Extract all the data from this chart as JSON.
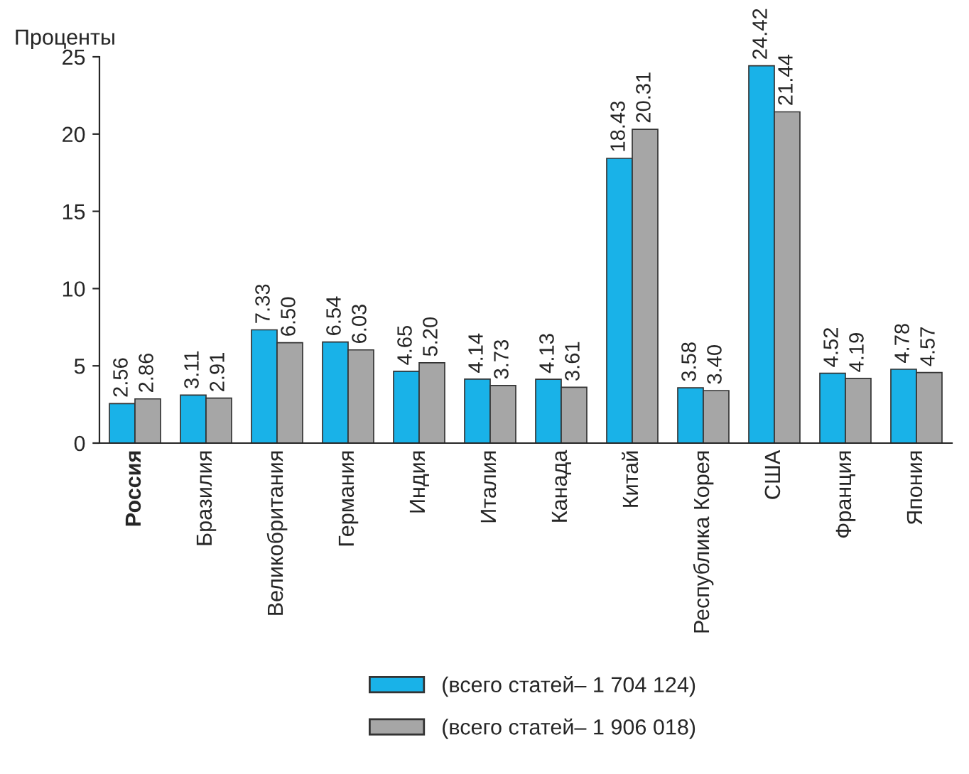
{
  "chart_data": {
    "type": "bar",
    "ylabel": "Проценты",
    "categories": [
      "Россия",
      "Бразилия",
      "Великобритания",
      "Германия",
      "Индия",
      "Италия",
      "Канада",
      "Китай",
      "Республика Корея",
      "США",
      "Франция",
      "Япония"
    ],
    "series": [
      {
        "name": "(всего статей– 1 704 124)",
        "color": "#19b2e8",
        "values": [
          2.56,
          3.11,
          7.33,
          6.54,
          4.65,
          4.14,
          4.13,
          18.43,
          3.58,
          24.42,
          4.52,
          4.78
        ],
        "value_labels": [
          "2.56",
          "3.11",
          "7.33",
          "6.54",
          "4.65",
          "4.14",
          "4.13",
          "18.43",
          "3.58",
          "24.42",
          "4.52",
          "4.78"
        ]
      },
      {
        "name": "(всего статей– 1 906 018)",
        "color": "#a6a6a6",
        "values": [
          2.86,
          2.91,
          6.5,
          6.03,
          5.2,
          3.73,
          3.61,
          20.31,
          3.4,
          21.44,
          4.19,
          4.57
        ],
        "value_labels": [
          "2.86",
          "2.91",
          "6.50",
          "6.03",
          "5.20",
          "3.73",
          "3.61",
          "20.31",
          "3.40",
          "21.44",
          "4.19",
          "4.57"
        ]
      }
    ],
    "ylim": [
      0,
      25
    ],
    "yticks": [
      0,
      5,
      10,
      15,
      20,
      25
    ],
    "grid": false,
    "legend": "bottom"
  }
}
